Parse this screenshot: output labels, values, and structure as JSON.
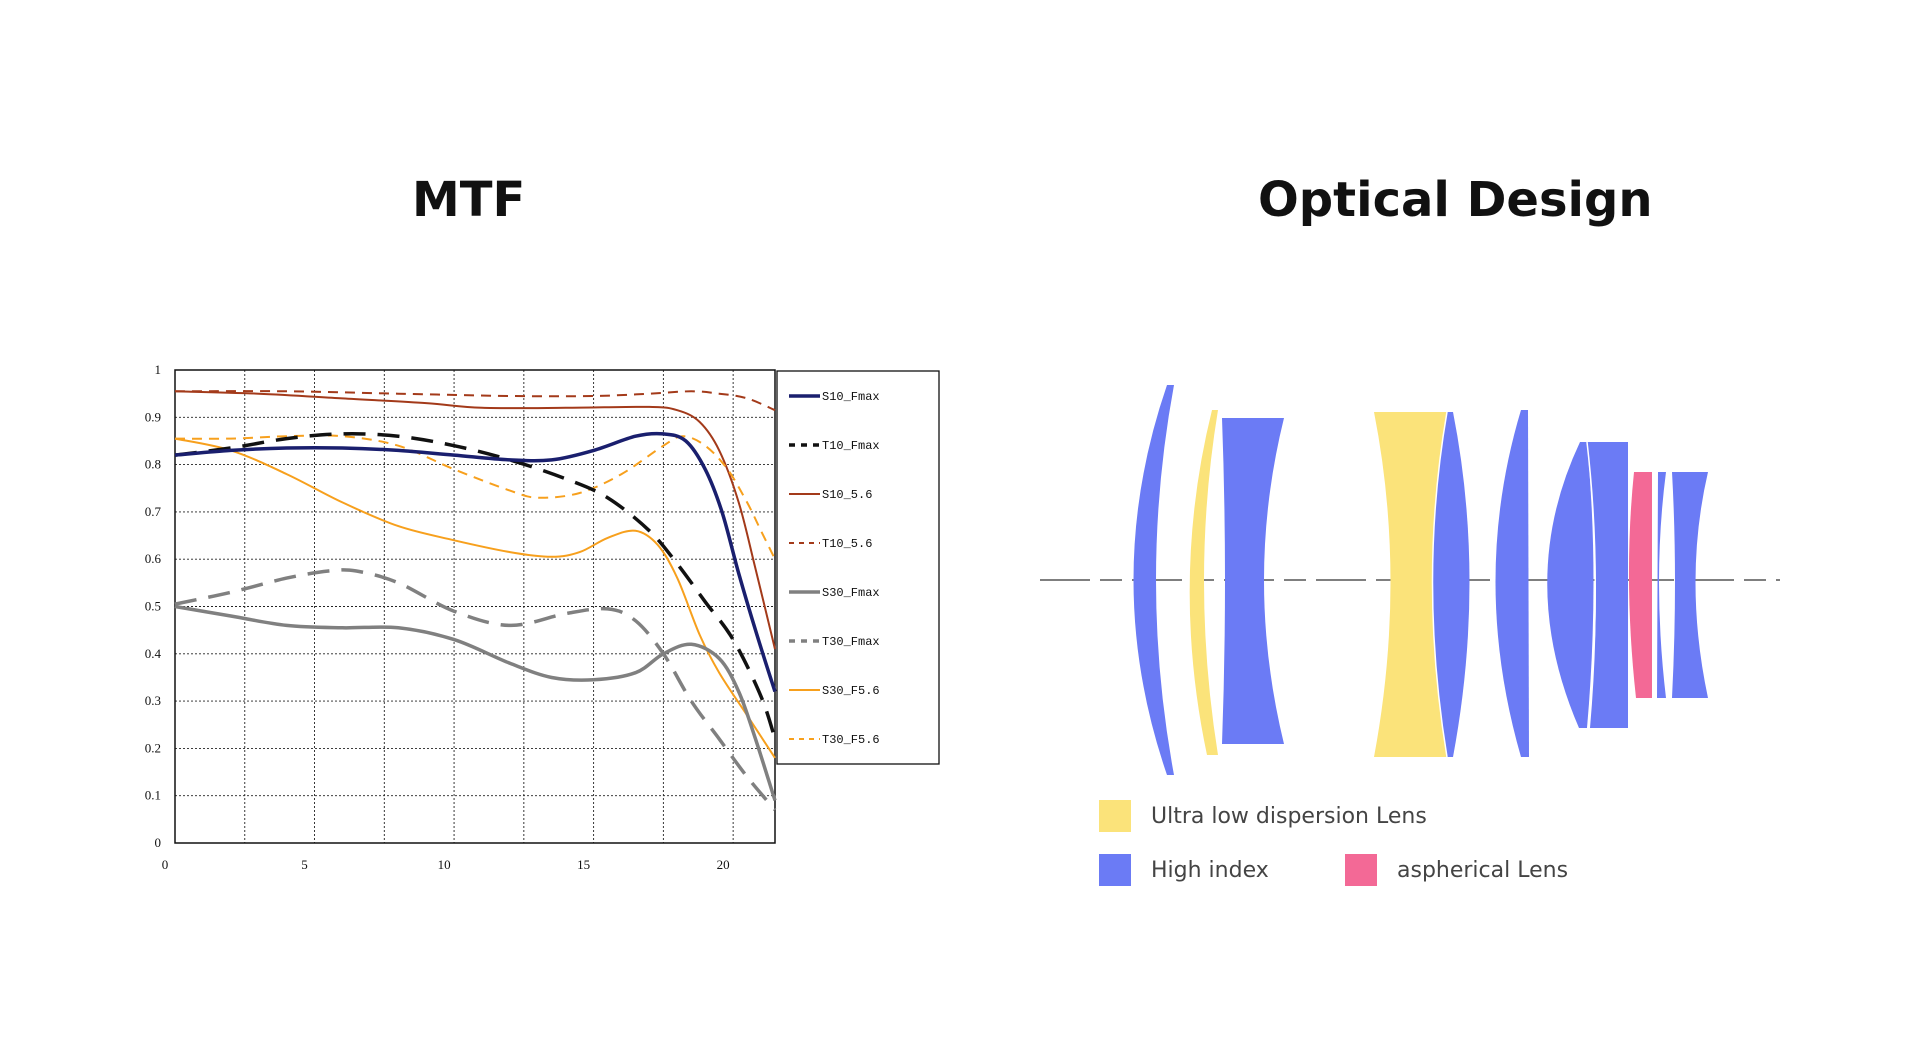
{
  "titles": {
    "left": "MTF",
    "right": "Optical Design"
  },
  "chart_data": {
    "type": "line",
    "xlim": [
      0,
      21.5
    ],
    "ylim": [
      0,
      1
    ],
    "x_ticks": [
      0,
      5,
      10,
      15,
      20
    ],
    "y_ticks": [
      0,
      0.1,
      0.2,
      0.3,
      0.4,
      0.5,
      0.6,
      0.7,
      0.8,
      0.9,
      1
    ],
    "grid": true,
    "legend_position": "right",
    "series": [
      {
        "name": "S10_Fmax",
        "color": "#1a1f6e",
        "dash": "solid",
        "width": 3.5,
        "points": [
          [
            0,
            0.82
          ],
          [
            2,
            0.83
          ],
          [
            4,
            0.835
          ],
          [
            6,
            0.835
          ],
          [
            8,
            0.83
          ],
          [
            10,
            0.82
          ],
          [
            12,
            0.81
          ],
          [
            13.5,
            0.81
          ],
          [
            15,
            0.83
          ],
          [
            16.5,
            0.86
          ],
          [
            17.5,
            0.865
          ],
          [
            18.3,
            0.85
          ],
          [
            19,
            0.79
          ],
          [
            19.6,
            0.7
          ],
          [
            20.2,
            0.57
          ],
          [
            20.8,
            0.45
          ],
          [
            21.5,
            0.32
          ]
        ]
      },
      {
        "name": "T10_Fmax",
        "color": "#111111",
        "dash": "long",
        "width": 3.5,
        "points": [
          [
            0,
            0.82
          ],
          [
            2,
            0.835
          ],
          [
            4,
            0.855
          ],
          [
            6,
            0.865
          ],
          [
            8,
            0.86
          ],
          [
            10,
            0.84
          ],
          [
            12,
            0.81
          ],
          [
            14,
            0.77
          ],
          [
            15.5,
            0.73
          ],
          [
            17,
            0.66
          ],
          [
            18,
            0.59
          ],
          [
            19,
            0.51
          ],
          [
            20,
            0.43
          ],
          [
            21,
            0.31
          ],
          [
            21.5,
            0.22
          ]
        ]
      },
      {
        "name": "S10_5.6",
        "color": "#a33a1a",
        "dash": "solid",
        "width": 2,
        "points": [
          [
            0,
            0.955
          ],
          [
            3,
            0.95
          ],
          [
            6,
            0.94
          ],
          [
            9,
            0.93
          ],
          [
            11,
            0.92
          ],
          [
            14,
            0.92
          ],
          [
            17,
            0.922
          ],
          [
            18,
            0.915
          ],
          [
            18.8,
            0.89
          ],
          [
            19.5,
            0.83
          ],
          [
            20.2,
            0.72
          ],
          [
            20.8,
            0.58
          ],
          [
            21.5,
            0.41
          ]
        ]
      },
      {
        "name": "T10_5.6",
        "color": "#a33a1a",
        "dash": "medium",
        "width": 2,
        "points": [
          [
            0,
            0.955
          ],
          [
            4,
            0.955
          ],
          [
            8,
            0.95
          ],
          [
            12,
            0.945
          ],
          [
            15,
            0.945
          ],
          [
            17,
            0.95
          ],
          [
            18.5,
            0.955
          ],
          [
            19.5,
            0.95
          ],
          [
            20.5,
            0.94
          ],
          [
            21.5,
            0.915
          ]
        ]
      },
      {
        "name": "S30_Fmax",
        "color": "#808080",
        "dash": "solid",
        "width": 3.5,
        "points": [
          [
            0,
            0.5
          ],
          [
            2,
            0.48
          ],
          [
            4,
            0.46
          ],
          [
            6,
            0.455
          ],
          [
            8,
            0.455
          ],
          [
            10,
            0.43
          ],
          [
            12,
            0.38
          ],
          [
            13.5,
            0.35
          ],
          [
            15,
            0.345
          ],
          [
            16.5,
            0.36
          ],
          [
            17.5,
            0.4
          ],
          [
            18.5,
            0.42
          ],
          [
            19.5,
            0.39
          ],
          [
            20.2,
            0.32
          ],
          [
            20.8,
            0.22
          ],
          [
            21.5,
            0.09
          ]
        ]
      },
      {
        "name": "T30_Fmax",
        "color": "#808080",
        "dash": "long",
        "width": 3.5,
        "points": [
          [
            0,
            0.505
          ],
          [
            2,
            0.53
          ],
          [
            4,
            0.56
          ],
          [
            5.5,
            0.575
          ],
          [
            6.5,
            0.575
          ],
          [
            8,
            0.55
          ],
          [
            10,
            0.49
          ],
          [
            12,
            0.46
          ],
          [
            14,
            0.485
          ],
          [
            15.5,
            0.495
          ],
          [
            16.5,
            0.47
          ],
          [
            17.5,
            0.4
          ],
          [
            18.5,
            0.3
          ],
          [
            19.5,
            0.22
          ],
          [
            20.5,
            0.14
          ],
          [
            21.5,
            0.07
          ]
        ]
      },
      {
        "name": "S30_F5.6",
        "color": "#f7a01d",
        "dash": "solid",
        "width": 2,
        "points": [
          [
            0,
            0.855
          ],
          [
            2,
            0.83
          ],
          [
            4,
            0.78
          ],
          [
            6,
            0.72
          ],
          [
            8,
            0.67
          ],
          [
            10,
            0.64
          ],
          [
            12,
            0.615
          ],
          [
            13.5,
            0.605
          ],
          [
            14.5,
            0.615
          ],
          [
            15.5,
            0.645
          ],
          [
            16.5,
            0.66
          ],
          [
            17.3,
            0.63
          ],
          [
            18,
            0.56
          ],
          [
            18.8,
            0.44
          ],
          [
            19.5,
            0.36
          ],
          [
            20.5,
            0.27
          ],
          [
            21.5,
            0.18
          ]
        ]
      },
      {
        "name": "T30_F5.6",
        "color": "#f7a01d",
        "dash": "medium",
        "width": 2,
        "points": [
          [
            0,
            0.855
          ],
          [
            2,
            0.855
          ],
          [
            4,
            0.86
          ],
          [
            6,
            0.86
          ],
          [
            8,
            0.84
          ],
          [
            10,
            0.79
          ],
          [
            12,
            0.745
          ],
          [
            13,
            0.73
          ],
          [
            14.5,
            0.74
          ],
          [
            16,
            0.78
          ],
          [
            17.5,
            0.84
          ],
          [
            18.2,
            0.86
          ],
          [
            19,
            0.84
          ],
          [
            19.8,
            0.79
          ],
          [
            20.5,
            0.72
          ],
          [
            21,
            0.66
          ],
          [
            21.5,
            0.6
          ]
        ]
      }
    ]
  },
  "optical_design": {
    "colors": {
      "ultra_low_dispersion": "#fbe37a",
      "high_index": "#6b7bf5",
      "aspherical": "#f36996"
    },
    "legend": {
      "ultra_low_dispersion": "Ultra low dispersion Lens",
      "high_index": "High index",
      "aspherical": "aspherical Lens"
    }
  }
}
